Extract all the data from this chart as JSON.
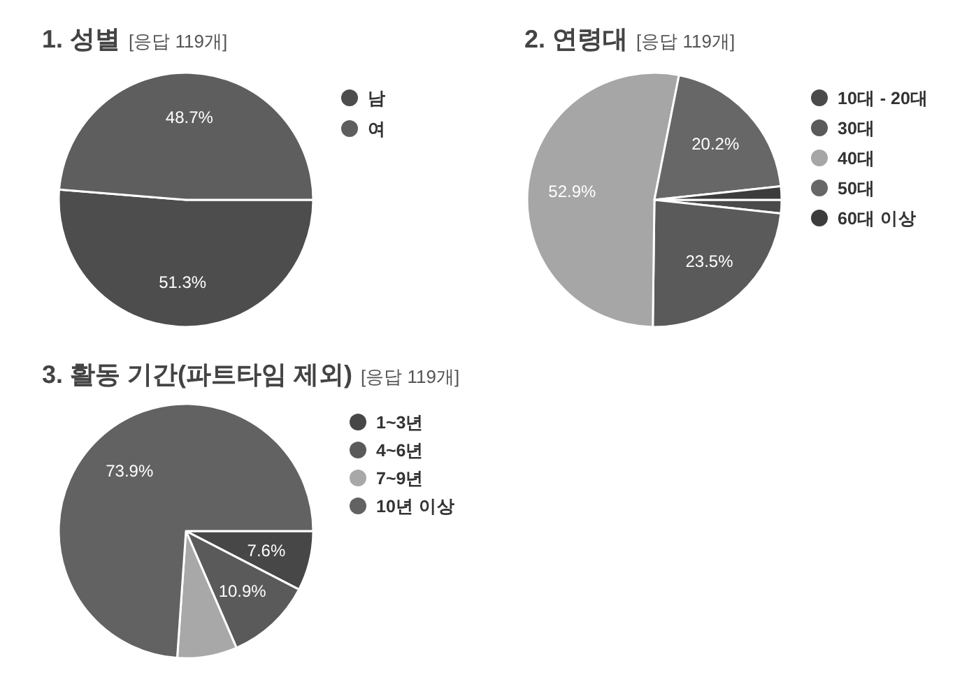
{
  "chart_data": [
    {
      "type": "pie",
      "title": "1. 성별",
      "subtitle": "[응답 119개]",
      "categories": [
        "남",
        "여"
      ],
      "values": [
        51.3,
        48.7
      ],
      "colors": [
        "#4d4d4d",
        "#5e5e5e"
      ],
      "value_labels": [
        "51.3%",
        "48.7%"
      ],
      "legend": "right"
    },
    {
      "type": "pie",
      "title": "2. 연령대",
      "subtitle": "[응답 119개]",
      "categories": [
        "10대 - 20대",
        "30대",
        "40대",
        "50대",
        "60대 이상"
      ],
      "values": [
        1.7,
        23.5,
        52.9,
        20.2,
        1.7
      ],
      "colors": [
        "#4a4a4a",
        "#5a5a5a",
        "#a6a6a6",
        "#676767",
        "#3c3c3c"
      ],
      "value_labels": [
        null,
        "23.5%",
        "52.9%",
        "20.2%",
        null
      ],
      "legend": "right"
    },
    {
      "type": "pie",
      "title": "3. 활동 기간(파트타임 제외)",
      "subtitle": "[응답 119개]",
      "categories": [
        "1~3년",
        "4~6년",
        "7~9년",
        "10년 이상"
      ],
      "values": [
        7.6,
        10.9,
        7.6,
        73.9
      ],
      "colors": [
        "#474747",
        "#5a5a5a",
        "#a8a8a8",
        "#626262"
      ],
      "value_labels": [
        "7.6%",
        "10.9%",
        null,
        "73.9%"
      ],
      "legend": "right"
    }
  ]
}
